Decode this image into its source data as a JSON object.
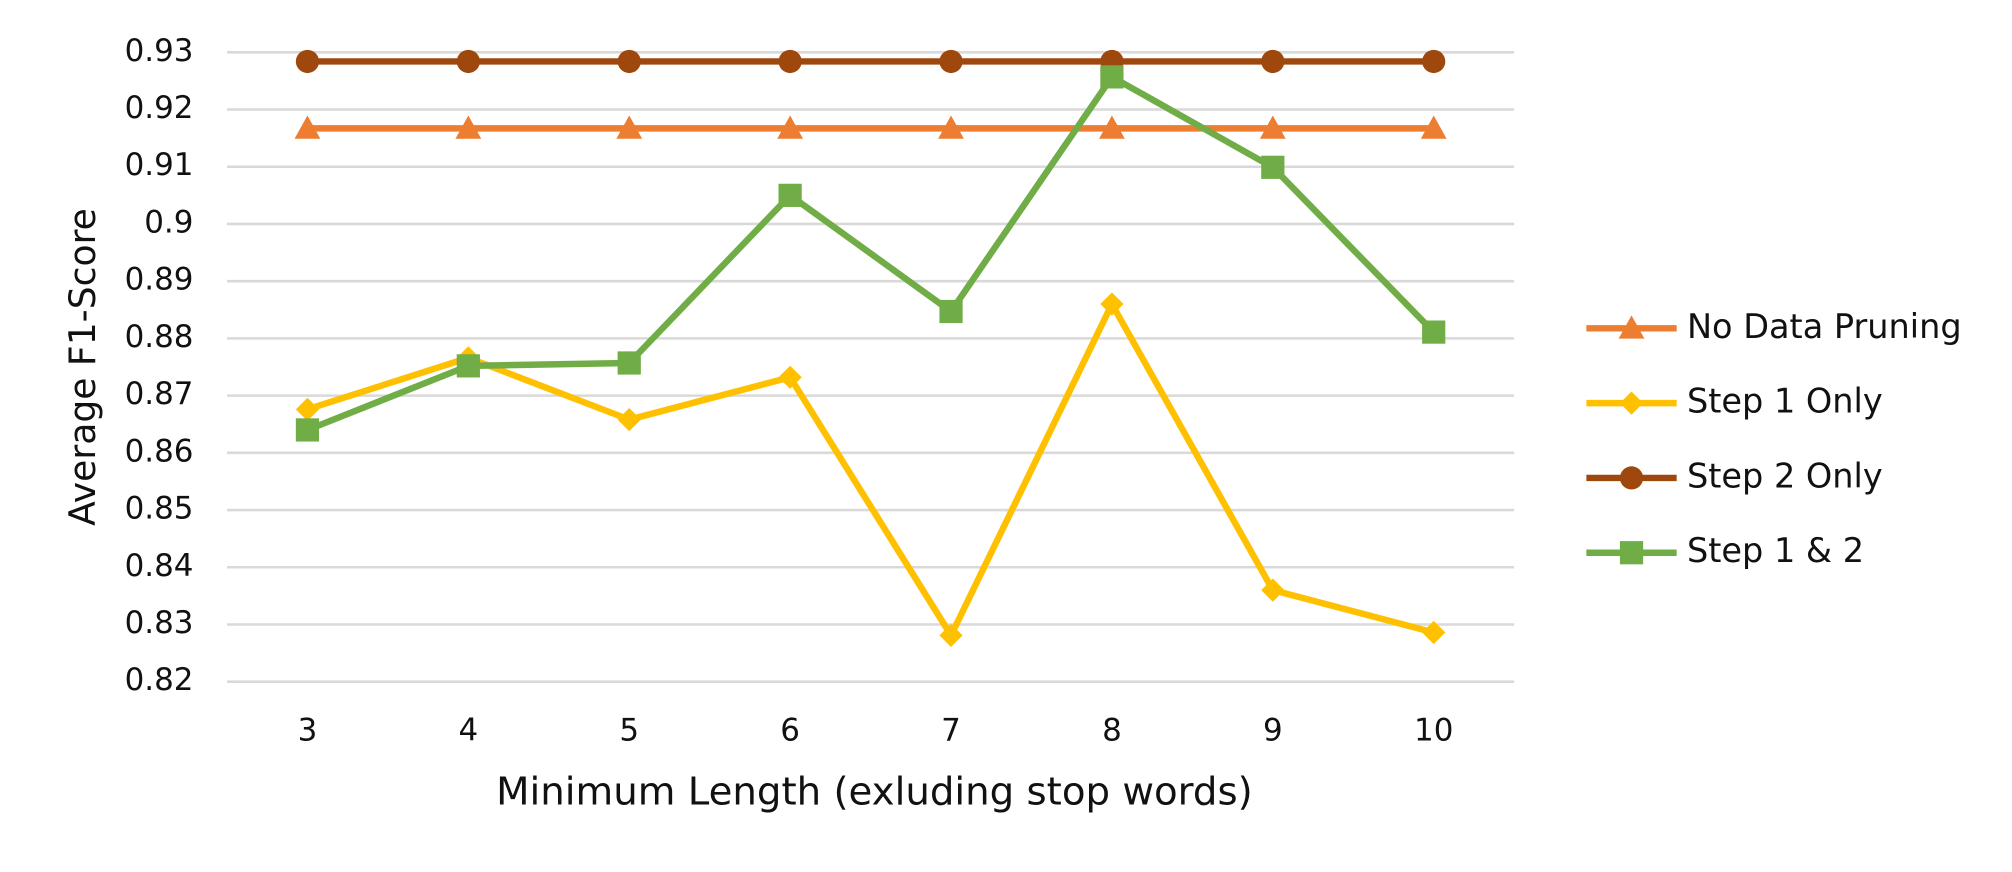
{
  "chart_data": {
    "type": "line",
    "x_label": "Minimum Length (exluding stop words)",
    "y_label": "Average F1-Score",
    "categories": [
      "3",
      "4",
      "5",
      "6",
      "7",
      "8",
      "9",
      "10"
    ],
    "series": [
      {
        "name": "No Data Pruning",
        "color": "#ed7d31",
        "marker": "triangle",
        "values": [
          0.9167,
          0.9167,
          0.9167,
          0.9167,
          0.9167,
          0.9167,
          0.9167,
          0.9167
        ]
      },
      {
        "name": "Step 1 Only",
        "color": "#ffc000",
        "marker": "diamond",
        "values": [
          0.8676,
          0.8766,
          0.8658,
          0.8732,
          0.8281,
          0.886,
          0.836,
          0.8286
        ]
      },
      {
        "name": "Step 2 Only",
        "color": "#9e480e",
        "marker": "circle",
        "values": [
          0.9284,
          0.9284,
          0.9284,
          0.9284,
          0.9284,
          0.9284,
          0.9284,
          0.9284
        ]
      },
      {
        "name": "Step 1 & 2",
        "color": "#70ad47",
        "marker": "square",
        "values": [
          0.864,
          0.8752,
          0.8757,
          0.905,
          0.8847,
          0.9257,
          0.9099,
          0.8811
        ]
      }
    ],
    "ylim": [
      0.82,
      0.93
    ],
    "yticks": [
      0.82,
      0.83,
      0.84,
      0.85,
      0.86,
      0.87,
      0.88,
      0.89,
      0.9,
      0.91,
      0.92,
      0.93
    ],
    "grid": true,
    "legend": "right"
  }
}
